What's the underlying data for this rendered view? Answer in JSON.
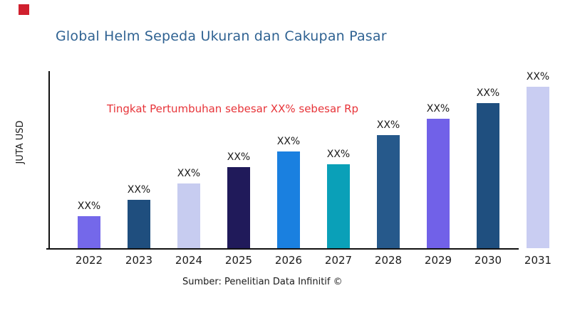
{
  "brand": {
    "mark_color": "#d0202e"
  },
  "header": {
    "title": "Global Helm Sepeda Ukuran dan Cakupan Pasar",
    "title_color": "#2f6292"
  },
  "annotation": {
    "text": "Tingkat Pertumbuhan sebesar XX% sebesar Rp",
    "color": "#e73439"
  },
  "footer": {
    "source": "Sumber: Penelitian Data Infinitif ©"
  },
  "chart_data": {
    "type": "bar",
    "title": "Global Helm Sepeda Ukuran dan Cakupan Pasar",
    "xlabel": "",
    "ylabel": "JUTA USD",
    "categories": [
      "2022",
      "2023",
      "2024",
      "2025",
      "2026",
      "2027",
      "2028",
      "2029",
      "2030",
      "2031"
    ],
    "values": [
      20,
      30,
      40,
      50,
      60,
      52,
      70,
      80,
      90,
      100
    ],
    "values_note": "no numeric y-axis shown; values are relative bar heights estimated from pixels (max bar = 100)",
    "bar_labels": [
      "XX%",
      "XX%",
      "XX%",
      "XX%",
      "XX%",
      "XX%",
      "XX%",
      "XX%",
      "XX%",
      "XX%"
    ],
    "bar_colors": [
      "#7468ea",
      "#1f4e7e",
      "#c7ccf0",
      "#201a5a",
      "#1a80e0",
      "#0aa0b8",
      "#26598b",
      "#7161e8",
      "#1f4f7f",
      "#c9cdf2"
    ],
    "ylim": [
      0,
      110
    ],
    "grid": false,
    "legend": null
  }
}
